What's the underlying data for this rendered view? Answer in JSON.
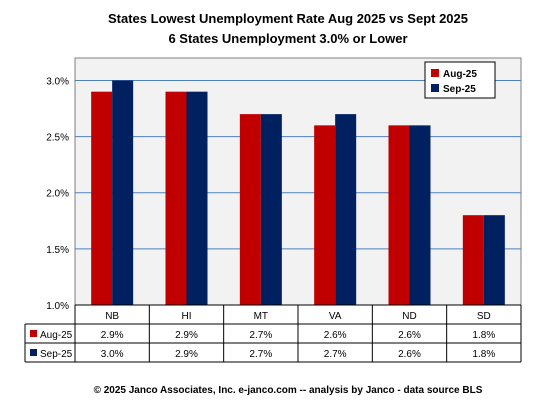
{
  "colors": {
    "aug": "#c00000",
    "sep": "#002060",
    "plot_bg": "#f2f2f2",
    "grid": "#4f81bd",
    "border": "#7f7f7f"
  },
  "chart_data": {
    "type": "bar",
    "title": "States Lowest Unemployment Rate Aug 2025 vs Sept 2025",
    "subtitle": "6 States  Unemployment 3.0% or Lower",
    "categories": [
      "NB",
      "HI",
      "MT",
      "VA",
      "ND",
      "SD"
    ],
    "series": [
      {
        "name": "Aug-25",
        "values": [
          2.9,
          2.9,
          2.7,
          2.6,
          2.6,
          1.8
        ],
        "labels": [
          "2.9%",
          "2.9%",
          "2.7%",
          "2.6%",
          "2.6%",
          "1.8%"
        ]
      },
      {
        "name": "Sep-25",
        "values": [
          3.0,
          2.9,
          2.7,
          2.7,
          2.6,
          1.8
        ],
        "labels": [
          "3.0%",
          "2.9%",
          "2.7%",
          "2.7%",
          "2.6%",
          "1.8%"
        ]
      }
    ],
    "ylim": [
      1.0,
      3.2
    ],
    "yticks": [
      1.0,
      1.5,
      2.0,
      2.5,
      3.0
    ],
    "ytick_labels": [
      "1.0%",
      "1.5%",
      "2.0%",
      "2.5%",
      "3.0%"
    ],
    "grid": true,
    "legend_position": "top-right",
    "data_table": true
  },
  "footer": "© 2025 Janco Associates, Inc. e-janco.com -- analysis by Janco - data source BLS"
}
